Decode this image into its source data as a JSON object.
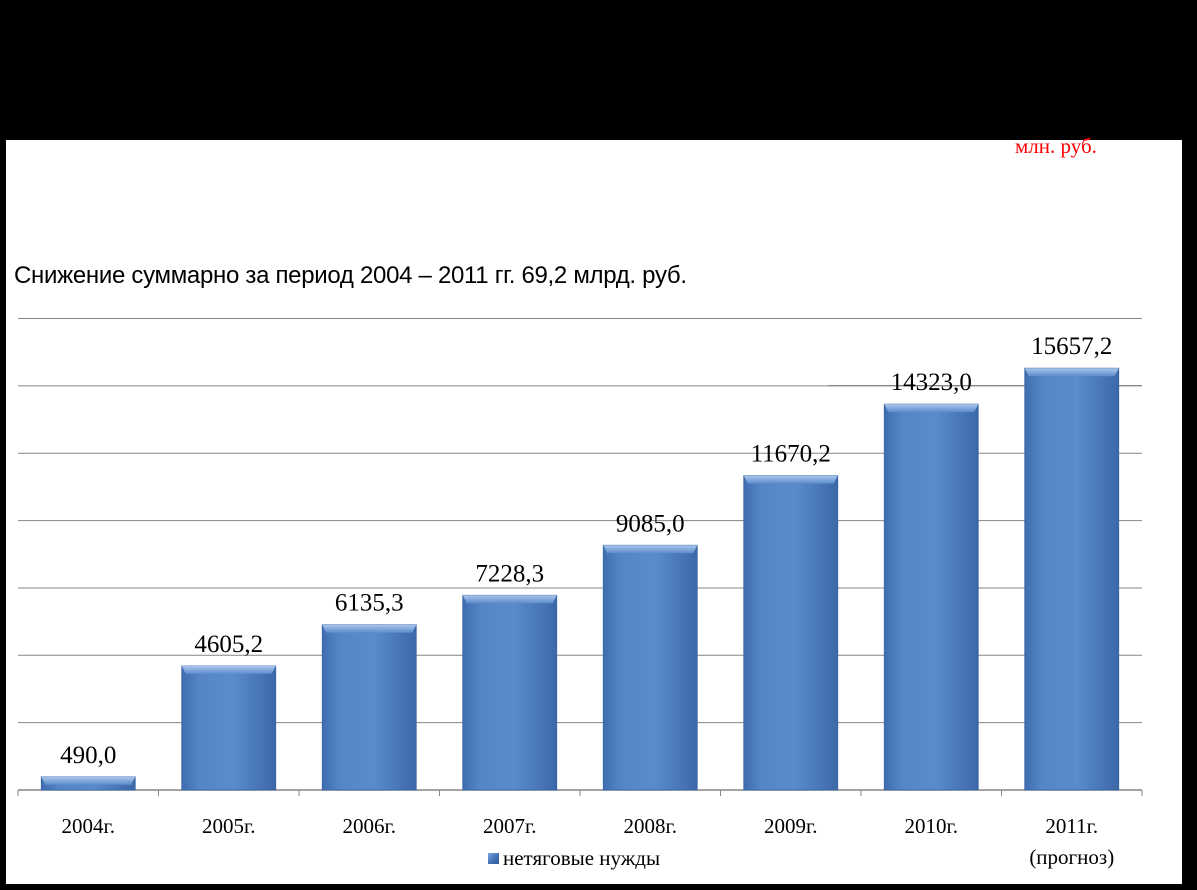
{
  "chart_data": {
    "type": "bar",
    "unit": "млн. руб.",
    "annotation": "Снижение суммарно за период 2004 – 2011 гг. 69,2 млрд. руб.",
    "categories": [
      "2004г.",
      "2005г.",
      "2006г.",
      "2007г.",
      "2008г.",
      "2009г.",
      "2010г.",
      "2011г."
    ],
    "category_sublabels": [
      "",
      "",
      "",
      "",
      "",
      "",
      "",
      "(прогноз)"
    ],
    "series": [
      {
        "name": "нетяговые нужды",
        "values": [
          490.0,
          4605.2,
          6135.3,
          7228.3,
          9085.0,
          11670.2,
          14323.0,
          15657.2
        ],
        "value_labels": [
          "490,0",
          "4605,2",
          "6135,3",
          "7228,3",
          "9085,0",
          "11670,2",
          "14323,0",
          "15657,2"
        ]
      }
    ],
    "ylim": [
      0,
      18000
    ],
    "y_gridlines": [
      0,
      2500,
      5000,
      7500,
      10000,
      12500,
      15000,
      17500
    ],
    "grid": true,
    "legend_position": "bottom",
    "colors": {
      "bar": "#4f81bd",
      "bar_top": "#7aa3d8",
      "bar_shadow": "#2f5a94",
      "grid": "#868686",
      "unit_text": "#ff0000",
      "background": "#ffffff",
      "frame": "#000000"
    }
  }
}
